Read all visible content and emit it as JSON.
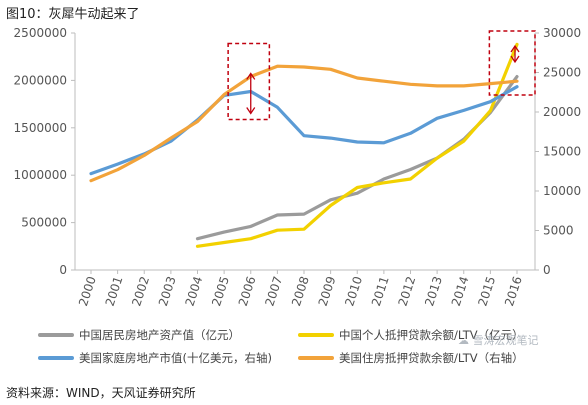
{
  "figure": {
    "title": "图10：灰犀牛动起来了",
    "source": "资料来源：WIND，天风证券研究所",
    "watermark": "☁ 雪涛宏观笔记"
  },
  "chart_data": {
    "type": "line",
    "x": [
      "2000",
      "2001",
      "2002",
      "2003",
      "2004",
      "2005",
      "2006",
      "2007",
      "2008",
      "2009",
      "2010",
      "2011",
      "2012",
      "2013",
      "2014",
      "2015",
      "2016"
    ],
    "y_left": {
      "min": 0,
      "max": 2500000,
      "ticks": [
        "0",
        "500000",
        "1000000",
        "1500000",
        "2000000",
        "2500000"
      ]
    },
    "y_right": {
      "min": 0,
      "max": 30000,
      "ticks": [
        "0",
        "5000",
        "10000",
        "15000",
        "20000",
        "25000",
        "30000"
      ]
    },
    "grid": false,
    "legend_position": "bottom",
    "series": [
      {
        "name": "中国居民房地产资产值（亿元）",
        "axis": "left",
        "color": "#9b9b9b",
        "values": [
          null,
          null,
          null,
          null,
          330000,
          400000,
          460000,
          580000,
          590000,
          740000,
          810000,
          960000,
          1060000,
          1180000,
          1380000,
          1660000,
          2040000
        ]
      },
      {
        "name": "中国个人抵押贷款余额/LTV（亿元）",
        "axis": "left",
        "color": "#f2d100",
        "values": [
          null,
          null,
          null,
          null,
          250000,
          290000,
          330000,
          420000,
          430000,
          680000,
          870000,
          920000,
          960000,
          1180000,
          1360000,
          1680000,
          2380000
        ]
      },
      {
        "name": "美国家庭房地产市值(十亿美元，右轴)",
        "axis": "right",
        "color": "#5b9bd5",
        "values": [
          12200,
          13400,
          14700,
          16300,
          19000,
          22100,
          22600,
          20600,
          17000,
          16700,
          16200,
          16100,
          17300,
          19200,
          20200,
          21300,
          23200
        ]
      },
      {
        "name": "美国住房抵押贷款余额/LTV（右轴）",
        "axis": "right",
        "color": "#f2a33a",
        "values": [
          11300,
          12700,
          14500,
          16700,
          18800,
          22200,
          24500,
          25800,
          25700,
          25400,
          24300,
          23900,
          23500,
          23300,
          23300,
          23600,
          23900
        ]
      }
    ],
    "annotations": [
      {
        "type": "dashed-box",
        "color": "#c0000f",
        "x_range": [
          "2005",
          "2007"
        ]
      },
      {
        "type": "dashed-box",
        "color": "#c0000f",
        "x_range": [
          "2015",
          "2016"
        ]
      }
    ]
  }
}
